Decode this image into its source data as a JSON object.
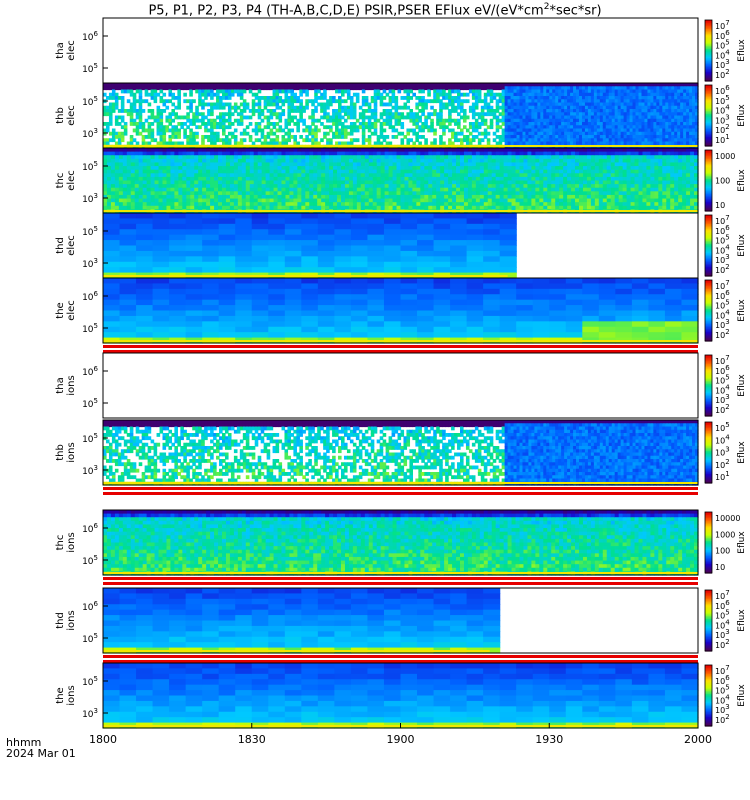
{
  "title": {
    "main": "P5, P1, P2, P3, P4 (TH-A,B,C,D,E) PSIR,PSER EFlux eV/(eV*cm",
    "sup": "2",
    "tail": "*sec*sr)"
  },
  "xaxis": {
    "ticks": [
      "1800",
      "1830",
      "1900",
      "1930",
      "2000"
    ],
    "format_label": "hhmm",
    "date_label": "2024 Mar 01"
  },
  "colors": {
    "background": "#ffffff",
    "colormap": [
      "#4b0055",
      "#1a00c8",
      "#0060ff",
      "#00c8ff",
      "#00e08c",
      "#c8ff00",
      "#ffe000",
      "#ff6000",
      "#e60000"
    ]
  },
  "chart_data": {
    "type": "heatmap",
    "x_unit": "hhmm UT",
    "x_range": [
      "1800",
      "2000"
    ],
    "colorbar_label": "Eflux",
    "panels": [
      {
        "id": "tha-elec",
        "probe": "tha",
        "species": "elec",
        "y_ticks": [
          {
            "mant": "10",
            "exp": "6"
          },
          {
            "mant": "10",
            "exp": "5"
          }
        ],
        "cbar_ticks": [
          {
            "mant": "10",
            "exp": "7"
          },
          {
            "mant": "10",
            "exp": "6"
          },
          {
            "mant": "10",
            "exp": "5"
          },
          {
            "mant": "10",
            "exp": "4"
          },
          {
            "mant": "10",
            "exp": "3"
          },
          {
            "mant": "10",
            "exp": "2"
          }
        ],
        "cbar_label": "Eflux",
        "data_end_fraction": 0.0,
        "bottom_stripe": false,
        "style": "empty"
      },
      {
        "id": "thb-elec",
        "probe": "thb",
        "species": "elec",
        "y_ticks": [
          {
            "mant": "10",
            "exp": "5"
          },
          {
            "mant": "10",
            "exp": "3"
          }
        ],
        "cbar_ticks": [
          {
            "mant": "10",
            "exp": "6"
          },
          {
            "mant": "10",
            "exp": "5"
          },
          {
            "mant": "10",
            "exp": "4"
          },
          {
            "mant": "10",
            "exp": "3"
          },
          {
            "mant": "10",
            "exp": "2"
          },
          {
            "mant": "10",
            "exp": "1"
          }
        ],
        "cbar_label": "Eflux",
        "data_end_fraction": 1.0,
        "bottom_stripe": false,
        "style": "sparse"
      },
      {
        "id": "thc-elec",
        "probe": "thc",
        "species": "elec",
        "y_ticks": [
          {
            "mant": "10",
            "exp": "5"
          },
          {
            "mant": "10",
            "exp": "3"
          }
        ],
        "cbar_ticks": [
          {
            "mant": "1000",
            "exp": ""
          },
          {
            "mant": "100",
            "exp": ""
          },
          {
            "mant": "10",
            "exp": ""
          }
        ],
        "cbar_label": "Eflux",
        "data_end_fraction": 1.0,
        "bottom_stripe": false,
        "style": "noisy"
      },
      {
        "id": "thd-elec",
        "probe": "thd",
        "species": "elec",
        "y_ticks": [
          {
            "mant": "10",
            "exp": "5"
          },
          {
            "mant": "10",
            "exp": "3"
          }
        ],
        "cbar_ticks": [
          {
            "mant": "10",
            "exp": "7"
          },
          {
            "mant": "10",
            "exp": "6"
          },
          {
            "mant": "10",
            "exp": "5"
          },
          {
            "mant": "10",
            "exp": "4"
          },
          {
            "mant": "10",
            "exp": "3"
          },
          {
            "mant": "10",
            "exp": "2"
          }
        ],
        "cbar_label": "Eflux",
        "data_end_fraction": 0.68,
        "bottom_stripe": false,
        "style": "smooth"
      },
      {
        "id": "the-elec",
        "probe": "the",
        "species": "elec",
        "y_ticks": [
          {
            "mant": "10",
            "exp": "6"
          },
          {
            "mant": "10",
            "exp": "5"
          }
        ],
        "cbar_ticks": [
          {
            "mant": "10",
            "exp": "7"
          },
          {
            "mant": "10",
            "exp": "6"
          },
          {
            "mant": "10",
            "exp": "5"
          },
          {
            "mant": "10",
            "exp": "4"
          },
          {
            "mant": "10",
            "exp": "3"
          },
          {
            "mant": "10",
            "exp": "2"
          }
        ],
        "cbar_label": "Eflux",
        "data_end_fraction": 1.0,
        "bottom_stripe": true,
        "style": "smooth"
      },
      {
        "id": "tha-ions",
        "probe": "tha",
        "species": "ions",
        "y_ticks": [
          {
            "mant": "10",
            "exp": "6"
          },
          {
            "mant": "10",
            "exp": "5"
          }
        ],
        "cbar_ticks": [
          {
            "mant": "10",
            "exp": "7"
          },
          {
            "mant": "10",
            "exp": "6"
          },
          {
            "mant": "10",
            "exp": "5"
          },
          {
            "mant": "10",
            "exp": "4"
          },
          {
            "mant": "10",
            "exp": "3"
          },
          {
            "mant": "10",
            "exp": "2"
          }
        ],
        "cbar_label": "Eflux",
        "data_end_fraction": 0.0,
        "bottom_stripe": true,
        "style": "empty"
      },
      {
        "id": "thb-ions",
        "probe": "thb",
        "species": "ions",
        "y_ticks": [
          {
            "mant": "10",
            "exp": "5"
          },
          {
            "mant": "10",
            "exp": "3"
          }
        ],
        "cbar_ticks": [
          {
            "mant": "10",
            "exp": "5"
          },
          {
            "mant": "10",
            "exp": "4"
          },
          {
            "mant": "10",
            "exp": "3"
          },
          {
            "mant": "10",
            "exp": "2"
          },
          {
            "mant": "10",
            "exp": "1"
          }
        ],
        "cbar_label": "Eflux",
        "data_end_fraction": 1.0,
        "bottom_stripe": true,
        "style": "sparse"
      },
      {
        "id": "thc-ions",
        "probe": "thc",
        "species": "ions",
        "y_ticks": [
          {
            "mant": "10",
            "exp": "6"
          },
          {
            "mant": "10",
            "exp": "5"
          }
        ],
        "cbar_ticks": [
          {
            "mant": "10000",
            "exp": ""
          },
          {
            "mant": "1000",
            "exp": ""
          },
          {
            "mant": "100",
            "exp": ""
          },
          {
            "mant": "10",
            "exp": ""
          }
        ],
        "cbar_label": "Eflux",
        "data_end_fraction": 1.0,
        "bottom_stripe": true,
        "style": "noisy"
      },
      {
        "id": "thd-ions",
        "probe": "thd",
        "species": "ions",
        "y_ticks": [
          {
            "mant": "10",
            "exp": "6"
          },
          {
            "mant": "10",
            "exp": "5"
          }
        ],
        "cbar_ticks": [
          {
            "mant": "10",
            "exp": "7"
          },
          {
            "mant": "10",
            "exp": "6"
          },
          {
            "mant": "10",
            "exp": "5"
          },
          {
            "mant": "10",
            "exp": "4"
          },
          {
            "mant": "10",
            "exp": "3"
          },
          {
            "mant": "10",
            "exp": "2"
          }
        ],
        "cbar_label": "Eflux",
        "data_end_fraction": 0.65,
        "bottom_stripe": true,
        "style": "smooth"
      },
      {
        "id": "the-ions",
        "probe": "the",
        "species": "ions",
        "y_ticks": [
          {
            "mant": "10",
            "exp": "5"
          },
          {
            "mant": "10",
            "exp": "3"
          }
        ],
        "cbar_ticks": [
          {
            "mant": "10",
            "exp": "7"
          },
          {
            "mant": "10",
            "exp": "6"
          },
          {
            "mant": "10",
            "exp": "5"
          },
          {
            "mant": "10",
            "exp": "4"
          },
          {
            "mant": "10",
            "exp": "3"
          },
          {
            "mant": "10",
            "exp": "2"
          }
        ],
        "cbar_label": "Eflux",
        "data_end_fraction": 1.0,
        "bottom_stripe": false,
        "style": "smooth"
      }
    ]
  }
}
